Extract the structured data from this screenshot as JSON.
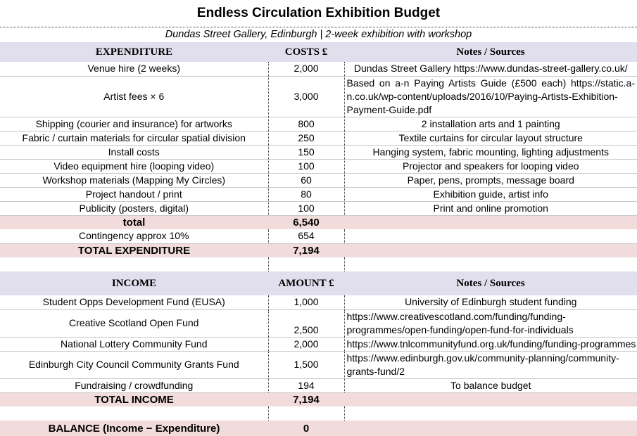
{
  "title": "Endless Circulation Exhibition Budget",
  "subtitle": "Dundas Street Gallery, Edinburgh | 2-week exhibition with workshop",
  "expenditure": {
    "headers": [
      "EXPENDITURE",
      "COSTS £",
      "Notes / Sources"
    ],
    "rows": [
      {
        "item": "Venue hire (2 weeks)",
        "cost": "2,000",
        "note": "Dundas Street Gallery https://www.dundas-street-gallery.co.uk/"
      },
      {
        "item": "Artist fees × 6",
        "cost": "3,000",
        "note": "Based on a-n Paying Artists Guide (£500 each) https://static.a-n.co.uk/wp-content/uploads/2016/10/Paying-Artists-Exhibition-Payment-Guide.pdf"
      },
      {
        "item": "Shipping (courier and insurance) for artworks",
        "cost": "800",
        "note": "2 installation arts and 1 painting"
      },
      {
        "item": "Fabric / curtain materials for circular spatial division",
        "cost": "250",
        "note": "Textile curtains for circular layout structure"
      },
      {
        "item": "Install costs",
        "cost": "150",
        "note": "Hanging system, fabric mounting, lighting adjustments"
      },
      {
        "item": "Video equipment hire (looping video)",
        "cost": "100",
        "note": "Projector and speakers for looping video"
      },
      {
        "item": "Workshop materials (Mapping My Circles)",
        "cost": "60",
        "note": "Paper, pens, prompts, message board"
      },
      {
        "item": "Project handout / print",
        "cost": "80",
        "note": "Exhibition guide, artist info"
      },
      {
        "item": "Publicity (posters, digital)",
        "cost": "100",
        "note": "Print and online promotion"
      }
    ],
    "subtotal_label": "total",
    "subtotal": "6,540",
    "contingency_label": "Contingency approx 10%",
    "contingency": "654",
    "total_label": "TOTAL EXPENDITURE",
    "total": "7,194"
  },
  "income": {
    "headers": [
      "INCOME",
      "AMOUNT £",
      "Notes / Sources"
    ],
    "rows": [
      {
        "item": "Student Opps Development Fund (EUSA)",
        "amount": "1,000",
        "note": "University of Edinburgh student funding"
      },
      {
        "item": "Creative Scotland Open Fund",
        "amount": "2,500",
        "note": "https://www.creativescotland.com/funding/funding-programmes/open-funding/open-fund-for-individuals"
      },
      {
        "item": "National Lottery Community Fund",
        "amount": "2,000",
        "note": "https://www.tnlcommunityfund.org.uk/funding/funding-programmes"
      },
      {
        "item": "Edinburgh City Council Community Grants Fund",
        "amount": "1,500",
        "note": "https://www.edinburgh.gov.uk/community-planning/community-grants-fund/2"
      },
      {
        "item": "Fundraising / crowdfunding",
        "amount": "194",
        "note": "To balance budget"
      }
    ],
    "total_label": "TOTAL INCOME",
    "total": "7,194"
  },
  "balance": {
    "label": "BALANCE (Income − Expenditure)",
    "value": "0"
  }
}
